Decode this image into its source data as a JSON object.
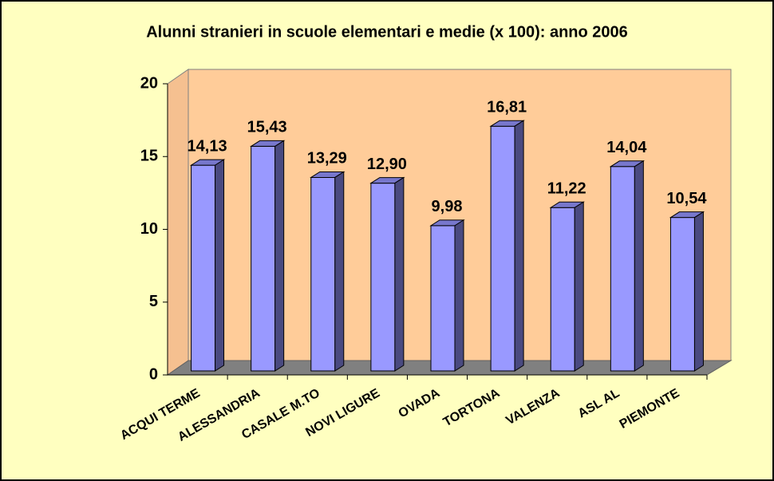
{
  "chart_data": {
    "type": "bar",
    "title": "Alunni stranieri in scuole elementari e medie (x 100): anno 2006",
    "categories": [
      "ACQUI TERME",
      "ALESSANDRIA",
      "CASALE M.TO",
      "NOVI LIGURE",
      "OVADA",
      "TORTONA",
      "VALENZA",
      "ASL AL",
      "PIEMONTE"
    ],
    "values": [
      14.13,
      15.43,
      13.29,
      12.9,
      9.98,
      16.81,
      11.22,
      14.04,
      10.54
    ],
    "value_labels": [
      "14,13",
      "15,43",
      "13,29",
      "12,90",
      "9,98",
      "16,81",
      "11,22",
      "14,04",
      "10,54"
    ],
    "color": "#9999ff",
    "ylim": [
      0,
      20
    ],
    "yticks": [
      0,
      5,
      10,
      15,
      20
    ]
  }
}
